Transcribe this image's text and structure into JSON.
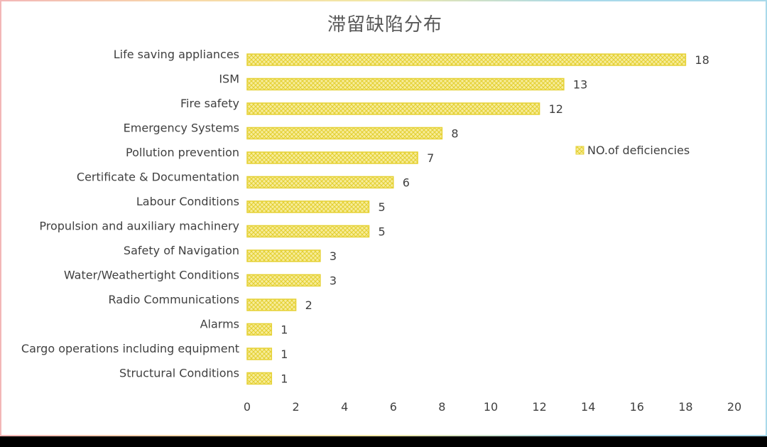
{
  "chart_data": {
    "type": "bar",
    "orientation": "horizontal",
    "title": "滞留缺陷分布",
    "categories": [
      "Life saving appliances",
      "ISM",
      "Fire safety",
      "Emergency Systems",
      "Pollution prevention",
      "Certificate & Documentation",
      "Labour Conditions",
      "Propulsion and auxiliary machinery",
      "Safety of Navigation",
      "Water/Weathertight Conditions",
      "Radio Communications",
      "Alarms",
      "Cargo operations including equipment",
      "Structural Conditions"
    ],
    "series": [
      {
        "name": "NO.of deficiencies",
        "values": [
          18,
          13,
          12,
          8,
          7,
          6,
          5,
          5,
          3,
          3,
          2,
          1,
          1,
          1
        ]
      }
    ],
    "xlim": [
      0,
      20
    ],
    "xticks": [
      0,
      2,
      4,
      6,
      8,
      10,
      12,
      14,
      16,
      18,
      20
    ],
    "data_labels": true,
    "grid": false,
    "legend_position": "right",
    "colors": {
      "bar_fill": "#f7ec9a",
      "bar_hatch": "#e3cf2e",
      "bar_stroke": "#e6d238",
      "axis": "#9dc3e6"
    }
  }
}
